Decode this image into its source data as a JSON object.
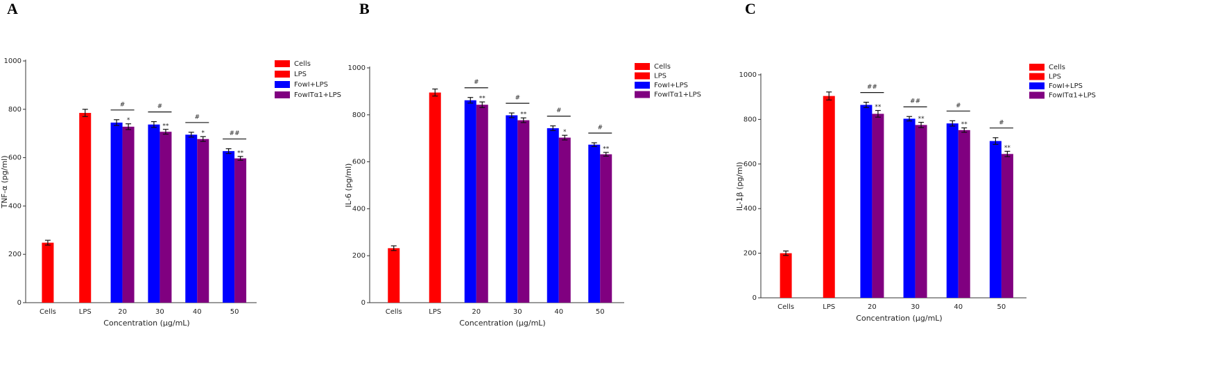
{
  "chart_data": [
    {
      "type": "bar",
      "panel": "A",
      "ylabel": "TNF-α (pg/ml)",
      "xlabel": "Concentration (μg/mL)",
      "categories": [
        "Cells",
        "LPS",
        "20",
        "30",
        "40",
        "50"
      ],
      "ylim": [
        0,
        1000
      ],
      "yticks": [
        0,
        200,
        400,
        600,
        800,
        1000
      ],
      "series": [
        {
          "name": "Cells",
          "color": "#ff0000",
          "values": [
            248,
            null,
            null,
            null,
            null,
            null
          ],
          "errors": [
            10,
            null,
            null,
            null,
            null,
            null
          ]
        },
        {
          "name": "LPS",
          "color": "#ff0000",
          "values": [
            null,
            785,
            null,
            null,
            null,
            null
          ],
          "errors": [
            null,
            15,
            null,
            null,
            null,
            null
          ]
        },
        {
          "name": "FowI+LPS",
          "color": "#0000ff",
          "values": [
            null,
            null,
            745,
            737,
            695,
            627
          ],
          "errors": [
            null,
            null,
            12,
            12,
            10,
            10
          ]
        },
        {
          "name": "FowITα1+LPS",
          "color": "#800080",
          "values": [
            null,
            null,
            728,
            707,
            677,
            597
          ],
          "errors": [
            null,
            null,
            12,
            10,
            10,
            8
          ],
          "annotations": [
            null,
            null,
            "*",
            "**",
            "*",
            "**"
          ]
        }
      ],
      "pair_annotations": [
        null,
        null,
        "#",
        "#",
        "#",
        "##"
      ]
    },
    {
      "type": "bar",
      "panel": "B",
      "ylabel": "IL-6 (pg/ml)",
      "xlabel": "Concentration (μg/mL)",
      "categories": [
        "Cells",
        "LPS",
        "20",
        "30",
        "40",
        "50"
      ],
      "ylim": [
        0,
        1000
      ],
      "yticks": [
        0,
        200,
        400,
        600,
        800,
        1000
      ],
      "series": [
        {
          "name": "Cells",
          "color": "#ff0000",
          "values": [
            232,
            null,
            null,
            null,
            null,
            null
          ],
          "errors": [
            10,
            null,
            null,
            null,
            null,
            null
          ]
        },
        {
          "name": "LPS",
          "color": "#ff0000",
          "values": [
            null,
            895,
            null,
            null,
            null,
            null
          ],
          "errors": [
            null,
            15,
            null,
            null,
            null,
            null
          ]
        },
        {
          "name": "FowI+LPS",
          "color": "#0000ff",
          "values": [
            null,
            null,
            862,
            798,
            743,
            673
          ],
          "errors": [
            null,
            null,
            12,
            10,
            10,
            8
          ]
        },
        {
          "name": "FowITα1+LPS",
          "color": "#800080",
          "values": [
            null,
            null,
            843,
            777,
            703,
            632
          ],
          "errors": [
            null,
            null,
            12,
            10,
            10,
            8
          ],
          "annotations": [
            null,
            null,
            "**",
            "**",
            "*",
            "**"
          ]
        }
      ],
      "pair_annotations": [
        null,
        null,
        "#",
        "#",
        "#",
        "#"
      ]
    },
    {
      "type": "bar",
      "panel": "C",
      "ylabel": "IL-1β (pg/ml)",
      "xlabel": "Concentration (μg/mL)",
      "categories": [
        "Cells",
        "LPS",
        "20",
        "30",
        "40",
        "50"
      ],
      "ylim": [
        0,
        1000
      ],
      "yticks": [
        0,
        200,
        400,
        600,
        800,
        1000
      ],
      "series": [
        {
          "name": "Cells",
          "color": "#ff0000",
          "values": [
            200,
            null,
            null,
            null,
            null,
            null
          ],
          "errors": [
            10,
            null,
            null,
            null,
            null,
            null
          ]
        },
        {
          "name": "LPS",
          "color": "#ff0000",
          "values": [
            null,
            905,
            null,
            null,
            null,
            null
          ],
          "errors": [
            null,
            18,
            null,
            null,
            null,
            null
          ]
        },
        {
          "name": "FowI+LPS",
          "color": "#0000ff",
          "values": [
            null,
            null,
            865,
            803,
            782,
            703
          ],
          "errors": [
            null,
            null,
            12,
            10,
            12,
            15
          ]
        },
        {
          "name": "FowITα1+LPS",
          "color": "#800080",
          "values": [
            null,
            null,
            825,
            775,
            752,
            645
          ],
          "errors": [
            null,
            null,
            15,
            12,
            10,
            12
          ],
          "annotations": [
            null,
            null,
            "**",
            "**",
            "**",
            "**"
          ]
        }
      ],
      "pair_annotations": [
        null,
        null,
        "##",
        "##",
        "#",
        "#"
      ]
    }
  ]
}
